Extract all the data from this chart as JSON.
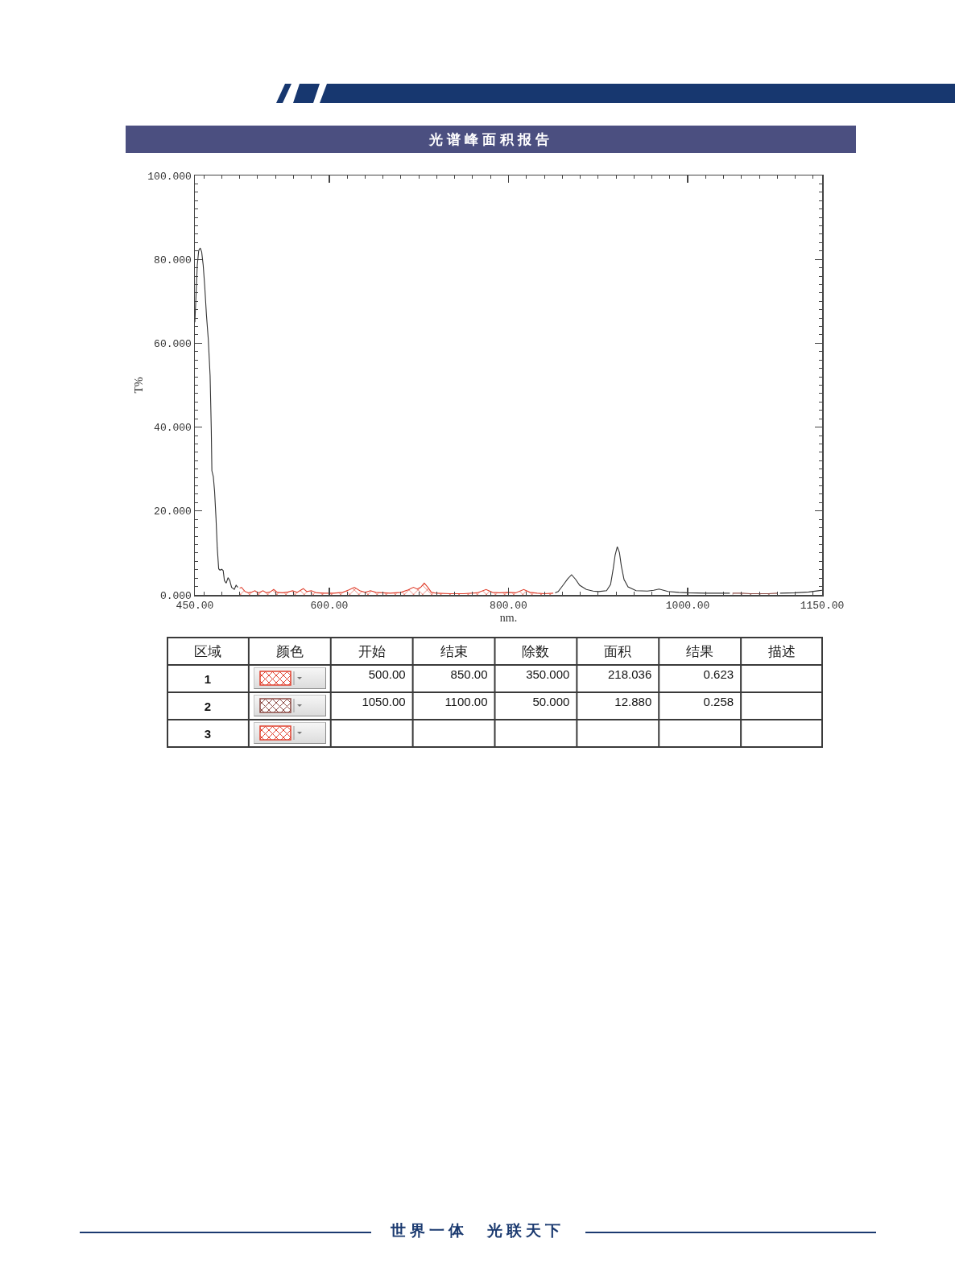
{
  "chart_data": [
    {
      "type": "line",
      "title": "光谱峰面积报告",
      "xlabel": "nm.",
      "ylabel": "T%",
      "xlim": [
        450,
        1150
      ],
      "ylim": [
        0,
        100
      ],
      "xticks": [
        {
          "value": 450,
          "label": "450.00"
        },
        {
          "value": 460,
          "label": null
        },
        {
          "value": 480,
          "label": null
        },
        {
          "value": 500,
          "label": null
        },
        {
          "value": 520,
          "label": null
        },
        {
          "value": 540,
          "label": null
        },
        {
          "value": 560,
          "label": null
        },
        {
          "value": 580,
          "label": null
        },
        {
          "value": 600,
          "label": "600.00"
        },
        {
          "value": 620,
          "label": null
        },
        {
          "value": 640,
          "label": null
        },
        {
          "value": 660,
          "label": null
        },
        {
          "value": 680,
          "label": null
        },
        {
          "value": 700,
          "label": null
        },
        {
          "value": 720,
          "label": null
        },
        {
          "value": 740,
          "label": null
        },
        {
          "value": 760,
          "label": null
        },
        {
          "value": 780,
          "label": null
        },
        {
          "value": 800,
          "label": "800.00"
        },
        {
          "value": 820,
          "label": null
        },
        {
          "value": 840,
          "label": null
        },
        {
          "value": 860,
          "label": null
        },
        {
          "value": 880,
          "label": null
        },
        {
          "value": 900,
          "label": null
        },
        {
          "value": 920,
          "label": null
        },
        {
          "value": 940,
          "label": null
        },
        {
          "value": 960,
          "label": null
        },
        {
          "value": 980,
          "label": null
        },
        {
          "value": 1000,
          "label": "1000.00"
        },
        {
          "value": 1020,
          "label": null
        },
        {
          "value": 1040,
          "label": null
        },
        {
          "value": 1060,
          "label": null
        },
        {
          "value": 1080,
          "label": null
        },
        {
          "value": 1100,
          "label": null
        },
        {
          "value": 1120,
          "label": null
        },
        {
          "value": 1140,
          "label": null
        },
        {
          "value": 1150,
          "label": "1150.00"
        }
      ],
      "yticks": [
        {
          "value": 0,
          "label": "0.000"
        },
        {
          "value": 2,
          "label": null
        },
        {
          "value": 4,
          "label": null
        },
        {
          "value": 6,
          "label": null
        },
        {
          "value": 8,
          "label": null
        },
        {
          "value": 10,
          "label": null
        },
        {
          "value": 12,
          "label": null
        },
        {
          "value": 14,
          "label": null
        },
        {
          "value": 16,
          "label": null
        },
        {
          "value": 18,
          "label": null
        },
        {
          "value": 20,
          "label": "20.000"
        },
        {
          "value": 22,
          "label": null
        },
        {
          "value": 24,
          "label": null
        },
        {
          "value": 26,
          "label": null
        },
        {
          "value": 28,
          "label": null
        },
        {
          "value": 30,
          "label": null
        },
        {
          "value": 32,
          "label": null
        },
        {
          "value": 34,
          "label": null
        },
        {
          "value": 36,
          "label": null
        },
        {
          "value": 38,
          "label": null
        },
        {
          "value": 40,
          "label": "40.000"
        },
        {
          "value": 42,
          "label": null
        },
        {
          "value": 44,
          "label": null
        },
        {
          "value": 46,
          "label": null
        },
        {
          "value": 48,
          "label": null
        },
        {
          "value": 50,
          "label": null
        },
        {
          "value": 52,
          "label": null
        },
        {
          "value": 54,
          "label": null
        },
        {
          "value": 56,
          "label": null
        },
        {
          "value": 58,
          "label": null
        },
        {
          "value": 60,
          "label": "60.000"
        },
        {
          "value": 62,
          "label": null
        },
        {
          "value": 64,
          "label": null
        },
        {
          "value": 66,
          "label": null
        },
        {
          "value": 68,
          "label": null
        },
        {
          "value": 70,
          "label": null
        },
        {
          "value": 72,
          "label": null
        },
        {
          "value": 74,
          "label": null
        },
        {
          "value": 76,
          "label": null
        },
        {
          "value": 78,
          "label": null
        },
        {
          "value": 80,
          "label": "80.000"
        },
        {
          "value": 82,
          "label": null
        },
        {
          "value": 84,
          "label": null
        },
        {
          "value": 86,
          "label": null
        },
        {
          "value": 88,
          "label": null
        },
        {
          "value": 90,
          "label": null
        },
        {
          "value": 92,
          "label": null
        },
        {
          "value": 94,
          "label": null
        },
        {
          "value": 96,
          "label": null
        },
        {
          "value": 98,
          "label": null
        },
        {
          "value": 100,
          "label": "100.000"
        }
      ],
      "series": [
        {
          "type": "line",
          "color": "#333333",
          "x": [
            450,
            451,
            452.7,
            454.3,
            456,
            457.6,
            459.3,
            461,
            463,
            465,
            467,
            468.3,
            469,
            470.6,
            472,
            473.6,
            475,
            476.6,
            478,
            480,
            481.6,
            483,
            485,
            487,
            489,
            491,
            494,
            496,
            498,
            675,
            852,
            855.5,
            861.5,
            866,
            870.4,
            874.9,
            879.4,
            886.9,
            894.4,
            900.4,
            909.4,
            913.9,
            916.9,
            919,
            921.4,
            923.8,
            925.9,
            928.9,
            933.4,
            942.4,
            955,
            962,
            968,
            978,
            990,
            1000,
            1020,
            1040,
            1047,
            1075,
            1103,
            1120,
            1135,
            1150
          ],
          "values": [
            65,
            70,
            78.6,
            82.1,
            82.7,
            81.8,
            78.6,
            73.6,
            66.5,
            60.9,
            52.3,
            39.6,
            29.6,
            28.2,
            24.7,
            18.3,
            11.2,
            6.2,
            5.9,
            6.1,
            5.8,
            3.4,
            2.8,
            4.1,
            3.4,
            1.8,
            1.3,
            2.3,
            1.8,
            null,
            0.5,
            0.8,
            2.5,
            3.8,
            4.8,
            3.7,
            2.3,
            1.3,
            0.9,
            0.8,
            1.0,
            2.5,
            6.3,
            9.5,
            11.5,
            10.1,
            6.9,
            3.7,
            1.9,
            1.0,
            0.9,
            1.1,
            1.4,
            0.8,
            0.6,
            0.5,
            0.4,
            0.4,
            0.4,
            null,
            0.4,
            0.5,
            0.7,
            1.1
          ]
        },
        {
          "type": "area",
          "color": "#e0412f",
          "x": [
            500,
            502,
            506,
            510,
            514,
            517,
            521,
            526,
            530,
            534,
            538,
            542,
            548,
            554,
            559,
            564,
            571,
            575,
            580,
            586,
            595,
            605,
            615,
            622,
            628,
            634,
            640,
            646,
            652,
            660,
            668,
            680,
            688,
            694,
            698,
            702,
            706,
            710,
            714,
            720,
            735,
            750,
            765,
            775,
            782,
            790,
            800,
            808,
            817,
            824,
            832,
            840,
            850
          ],
          "values": [
            1.6,
            1.8,
            0.8,
            0.5,
            0.7,
            1.0,
            0.5,
            1.0,
            0.5,
            0.7,
            1.3,
            0.6,
            0.5,
            0.7,
            1.0,
            0.6,
            1.5,
            0.8,
            1.0,
            0.5,
            0.4,
            0.4,
            0.6,
            1.2,
            1.8,
            1.0,
            0.6,
            1.0,
            0.6,
            0.5,
            0.4,
            0.6,
            1.2,
            1.8,
            1.4,
            1.8,
            2.8,
            1.8,
            0.6,
            0.4,
            0.3,
            0.3,
            0.5,
            1.3,
            0.6,
            0.5,
            0.6,
            0.5,
            1.3,
            0.6,
            0.4,
            0.3,
            0.4
          ]
        },
        {
          "type": "area",
          "color": "#8c4b45",
          "x": [
            1050,
            1060,
            1070,
            1080,
            1090,
            1100
          ],
          "values": [
            0.4,
            0.4,
            0.3,
            0.3,
            0.3,
            0.4
          ]
        }
      ],
      "annotations": [
        "世界一体　光联天下"
      ]
    },
    {
      "type": "other",
      "categories": [
        "区域",
        "颜色",
        "开始",
        "结束",
        "除数",
        "面积",
        "结果",
        "描述"
      ],
      "cell_labels": [
        [
          "1",
          null,
          "500.00",
          "850.00",
          "350.000",
          "218.036",
          "0.623",
          null
        ],
        [
          "2",
          null,
          "1050.00",
          "1100.00",
          "50.000",
          "12.880",
          "0.258",
          null
        ],
        [
          "3",
          null,
          null,
          null,
          null,
          null,
          null,
          null
        ]
      ],
      "colors": [
        "#e0412f",
        "#8c4b45",
        "#e0412f"
      ]
    }
  ]
}
